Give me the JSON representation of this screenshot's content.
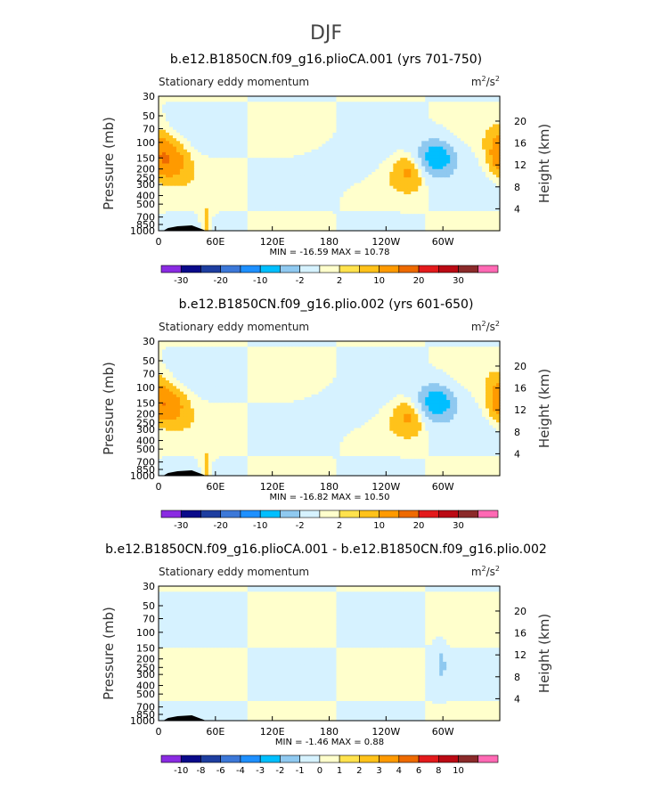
{
  "figure_title": "DJF",
  "colors": {
    "levels_main": [
      "#8a2be2",
      "#0a0a8a",
      "#1e3ea0",
      "#3c78d8",
      "#1e90ff",
      "#00bfff",
      "#8fc9f0",
      "#d6f2ff",
      "#ffffcc",
      "#ffe24d",
      "#ffc21a",
      "#ff9a00",
      "#ee6a00",
      "#e31a1c",
      "#bb0a14",
      "#8b2a2a",
      "#ff69b4"
    ],
    "levels_diff": [
      "#8a2be2",
      "#0a0a8a",
      "#1e3ea0",
      "#3c78d8",
      "#1e90ff",
      "#00bfff",
      "#8fc9f0",
      "#d6f2ff",
      "#ffffcc",
      "#ffe24d",
      "#ffc21a",
      "#ff9a00",
      "#ee6a00",
      "#e31a1c",
      "#bb0a14",
      "#8b2a2a",
      "#ff69b4"
    ],
    "topo": "#000000"
  },
  "chart_data": [
    {
      "type": "heatmap",
      "title": "b.e12.B1850CN.f09_g16.plioCA.001 (yrs 701-750)",
      "subtitle_left": "Stationary eddy momentum",
      "units": "m²/s²",
      "units_base": "m",
      "units_exp1": "2",
      "units_mid": "/s",
      "units_exp2": "2",
      "ylabel_left": "Pressure (mb)",
      "ylabel_right": "Height (km)",
      "x_ticks": [
        "0",
        "60E",
        "120E",
        "180",
        "120W",
        "60W"
      ],
      "x_tick_lon": [
        0,
        60,
        120,
        180,
        240,
        300
      ],
      "xlim": [
        0,
        360
      ],
      "p_ticks": [
        "30",
        "50",
        "70",
        "100",
        "150",
        "200",
        "250",
        "300",
        "400",
        "500",
        "700",
        "850",
        "1000"
      ],
      "p_tick_values": [
        30,
        50,
        70,
        100,
        150,
        200,
        250,
        300,
        400,
        500,
        700,
        850,
        1000
      ],
      "ylim_mb": [
        1000,
        30
      ],
      "h_ticks": [
        "4",
        "8",
        "12",
        "16",
        "20"
      ],
      "h_tick_values_km": [
        4,
        8,
        12,
        16,
        20
      ],
      "stats": "MIN =  -16.59   MAX =   10.78",
      "min": -16.59,
      "max": 10.78,
      "colorbar_labels": [
        "-30",
        "-20",
        "-10",
        "-2",
        "2",
        "10",
        "20",
        "30"
      ],
      "colorbar_label_after_box": [
        1,
        3,
        5,
        7,
        9,
        11,
        13,
        15
      ],
      "features": [
        {
          "lon": 10,
          "p": 160,
          "value": 9,
          "sx": 14,
          "sp": 90
        },
        {
          "lon": 268,
          "p": 200,
          "value": 7,
          "sx": 12,
          "sp": 100
        },
        {
          "lon": 292,
          "p": 150,
          "value": -15,
          "sx": 16,
          "sp": 90
        },
        {
          "lon": 360,
          "p": 110,
          "value": 4,
          "sx": 8,
          "sp": 60
        },
        {
          "lon": 198,
          "p": 180,
          "value": -3,
          "sx": 22,
          "sp": 60
        },
        {
          "lon": 50,
          "p": 900,
          "value": 4,
          "sx": 4,
          "sp": 100
        }
      ]
    },
    {
      "type": "heatmap",
      "title": "b.e12.B1850CN.f09_g16.plio.002 (yrs 601-650)",
      "subtitle_left": "Stationary eddy momentum",
      "units": "m²/s²",
      "units_base": "m",
      "units_exp1": "2",
      "units_mid": "/s",
      "units_exp2": "2",
      "ylabel_left": "Pressure (mb)",
      "ylabel_right": "Height (km)",
      "x_ticks": [
        "0",
        "60E",
        "120E",
        "180",
        "120W",
        "60W"
      ],
      "x_tick_lon": [
        0,
        60,
        120,
        180,
        240,
        300
      ],
      "xlim": [
        0,
        360
      ],
      "p_ticks": [
        "30",
        "50",
        "70",
        "100",
        "150",
        "200",
        "250",
        "300",
        "400",
        "500",
        "700",
        "850",
        "1000"
      ],
      "p_tick_values": [
        30,
        50,
        70,
        100,
        150,
        200,
        250,
        300,
        400,
        500,
        700,
        850,
        1000
      ],
      "ylim_mb": [
        1000,
        30
      ],
      "h_ticks": [
        "4",
        "8",
        "12",
        "16",
        "20"
      ],
      "h_tick_values_km": [
        4,
        8,
        12,
        16,
        20
      ],
      "stats": "MIN =  -16.82   MAX =   10.50",
      "min": -16.82,
      "max": 10.5,
      "colorbar_labels": [
        "-30",
        "-20",
        "-10",
        "-2",
        "2",
        "10",
        "20",
        "30"
      ],
      "colorbar_label_after_box": [
        1,
        3,
        5,
        7,
        9,
        11,
        13,
        15
      ],
      "features": [
        {
          "lon": 10,
          "p": 160,
          "value": 8,
          "sx": 14,
          "sp": 90
        },
        {
          "lon": 268,
          "p": 200,
          "value": 7,
          "sx": 12,
          "sp": 100
        },
        {
          "lon": 292,
          "p": 150,
          "value": -15,
          "sx": 16,
          "sp": 90
        },
        {
          "lon": 360,
          "p": 120,
          "value": 4,
          "sx": 8,
          "sp": 60
        },
        {
          "lon": 198,
          "p": 180,
          "value": -3,
          "sx": 22,
          "sp": 60
        },
        {
          "lon": 50,
          "p": 900,
          "value": 4,
          "sx": 4,
          "sp": 100
        }
      ]
    },
    {
      "type": "heatmap",
      "title": "b.e12.B1850CN.f09_g16.plioCA.001 - b.e12.B1850CN.f09_g16.plio.002",
      "subtitle_left": "Stationary eddy momentum",
      "units": "m²/s²",
      "units_base": "m",
      "units_exp1": "2",
      "units_mid": "/s",
      "units_exp2": "2",
      "ylabel_left": "Pressure (mb)",
      "ylabel_right": "Height (km)",
      "x_ticks": [
        "0",
        "60E",
        "120E",
        "180",
        "120W",
        "60W"
      ],
      "x_tick_lon": [
        0,
        60,
        120,
        180,
        240,
        300
      ],
      "xlim": [
        0,
        360
      ],
      "p_ticks": [
        "30",
        "50",
        "70",
        "100",
        "150",
        "200",
        "250",
        "300",
        "400",
        "500",
        "700",
        "850",
        "1000"
      ],
      "p_tick_values": [
        30,
        50,
        70,
        100,
        150,
        200,
        250,
        300,
        400,
        500,
        700,
        850,
        1000
      ],
      "ylim_mb": [
        1000,
        30
      ],
      "h_ticks": [
        "4",
        "8",
        "12",
        "16",
        "20"
      ],
      "h_tick_values_km": [
        4,
        8,
        12,
        16,
        20
      ],
      "stats": "MIN =   -1.46   MAX =    0.88",
      "min": -1.46,
      "max": 0.88,
      "colorbar_labels": [
        "-10",
        "-8",
        "-6",
        "-4",
        "-3",
        "-2",
        "-1",
        "0",
        "1",
        "2",
        "3",
        "4",
        "6",
        "8",
        "10"
      ],
      "colorbar_label_after_box": [
        1,
        2,
        3,
        4,
        5,
        6,
        7,
        8,
        9,
        10,
        11,
        12,
        13,
        14,
        15
      ],
      "features": [
        {
          "lon": 298,
          "p": 220,
          "value": -1.2,
          "sx": 4,
          "sp": 30
        }
      ]
    }
  ]
}
